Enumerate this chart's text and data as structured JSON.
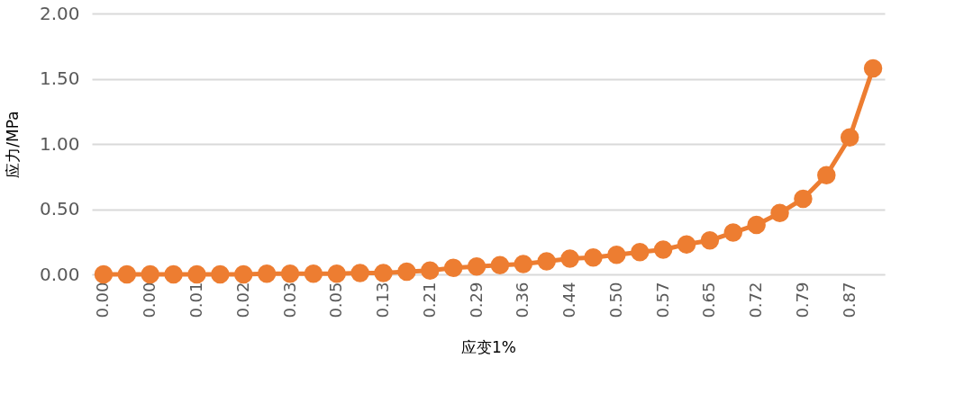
{
  "chart_data": {
    "type": "line",
    "xlabel": "应变1%",
    "ylabel": "应力/MPa",
    "categories": [
      "0.00",
      null,
      "0.00",
      null,
      "0.01",
      null,
      "0.02",
      null,
      "0.03",
      null,
      "0.05",
      null,
      "0.13",
      null,
      "0.21",
      null,
      "0.29",
      null,
      "0.36",
      null,
      "0.44",
      null,
      "0.50",
      null,
      "0.57",
      null,
      "0.65",
      null,
      "0.72",
      null,
      "0.79",
      null,
      "0.87",
      null
    ],
    "series": [
      {
        "color": "#ed7d31",
        "values": [
          0,
          0,
          0,
          0,
          0,
          0,
          0,
          0.005,
          0.005,
          0.005,
          0.005,
          0.01,
          0.01,
          0.02,
          0.03,
          0.05,
          0.06,
          0.07,
          0.08,
          0.1,
          0.12,
          0.13,
          0.15,
          0.17,
          0.19,
          0.23,
          0.26,
          0.32,
          0.38,
          0.47,
          0.58,
          0.76,
          1.05,
          1.58
        ]
      }
    ],
    "ylim": [
      0,
      2
    ],
    "yticks": [
      {
        "value": 0,
        "label": "0.00"
      },
      {
        "value": 0.5,
        "label": "0.50"
      },
      {
        "value": 1,
        "label": "1.00"
      },
      {
        "value": 1.5,
        "label": "1.50"
      },
      {
        "value": 2,
        "label": "2.00"
      }
    ],
    "grid": "y",
    "marker": "circle",
    "line_style": "solid",
    "legend": false
  }
}
